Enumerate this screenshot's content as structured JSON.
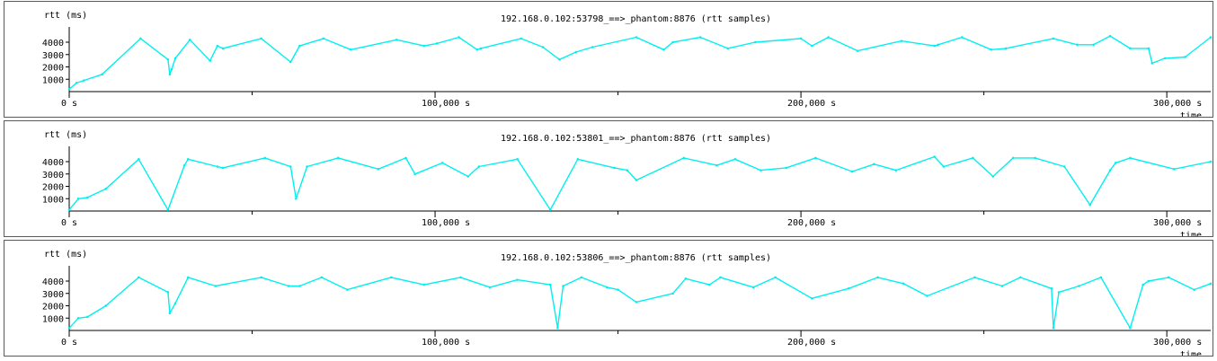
{
  "window": {
    "panels": [
      {
        "title": "192.168.0.102:53798_==>_phantom:8876 (rtt samples)"
      },
      {
        "title": "192.168.0.102:53801_==>_phantom:8876 (rtt samples)"
      },
      {
        "title": "192.168.0.102:53806_==>_phantom:8876 (rtt samples)"
      }
    ]
  },
  "chart_data": [
    {
      "type": "line",
      "title": "192.168.0.102:53798_==>_phantom:8876 (rtt samples)",
      "ylabel": "rtt (ms)",
      "xlabel": "time",
      "xlim": [
        0,
        312000
      ],
      "ylim": [
        0,
        4800
      ],
      "x_ticks": [
        0,
        100000,
        200000,
        300000
      ],
      "x_tick_labels": [
        "0 s",
        "100,000  s",
        "200,000  s",
        "300,000  s"
      ],
      "y_ticks": [
        1000,
        2000,
        3000,
        4000
      ],
      "y_tick_labels": [
        "1000",
        "2000",
        "3000",
        "4000"
      ],
      "grid": false,
      "series": [
        {
          "color": "#00f0f0",
          "x": [
            0,
            2000,
            4000,
            9000,
            19500,
            27000,
            27500,
            28000,
            29000,
            33000,
            38500,
            40500,
            42000,
            52500,
            60500,
            63000,
            69500,
            77000,
            89500,
            97000,
            100500,
            106500,
            111500,
            112500,
            123500,
            129500,
            134000,
            138500,
            143000,
            155000,
            162500,
            165000,
            172500,
            180000,
            187500,
            200000,
            203000,
            207500,
            215500,
            227500,
            236500,
            237500,
            244000,
            252000,
            256000,
            269000,
            275500,
            280000,
            284500,
            290000,
            295000,
            296000,
            299500,
            305000,
            312000
          ],
          "y": [
            200,
            700,
            900,
            1400,
            4300,
            2600,
            1400,
            1800,
            2700,
            4200,
            2500,
            3700,
            3500,
            4300,
            2400,
            3700,
            4300,
            3400,
            4200,
            3700,
            3900,
            4400,
            3400,
            3500,
            4300,
            3600,
            2600,
            3200,
            3600,
            4400,
            3400,
            4000,
            4400,
            3500,
            4000,
            4300,
            3700,
            4400,
            3300,
            4100,
            3700,
            3800,
            4400,
            3400,
            3500,
            4300,
            3800,
            3800,
            4500,
            3500,
            3500,
            2300,
            2700,
            2800,
            4400
          ]
        }
      ]
    },
    {
      "type": "line",
      "title": "192.168.0.102:53801_==>_phantom:8876 (rtt samples)",
      "ylabel": "rtt (ms)",
      "xlabel": "time",
      "xlim": [
        0,
        312000
      ],
      "ylim": [
        0,
        4800
      ],
      "x_ticks": [
        0,
        100000,
        200000,
        300000
      ],
      "x_tick_labels": [
        "0 s",
        "100,000  s",
        "200,000  s",
        "300,000  s"
      ],
      "y_ticks": [
        1000,
        2000,
        3000,
        4000
      ],
      "y_tick_labels": [
        "1000",
        "2000",
        "3000",
        "4000"
      ],
      "grid": false,
      "series": [
        {
          "color": "#00f0f0",
          "x": [
            0,
            2500,
            5000,
            10000,
            19000,
            27000,
            31500,
            32500,
            40500,
            42000,
            53500,
            60500,
            62000,
            65000,
            73500,
            84500,
            92000,
            94500,
            102000,
            109000,
            112000,
            122500,
            131500,
            139000,
            149000,
            152500,
            155000,
            168000,
            177000,
            182000,
            189000,
            196000,
            204000,
            214000,
            220000,
            226000,
            236500,
            239000,
            247000,
            252500,
            258000,
            264000,
            272000,
            279000,
            284500,
            286000,
            290000,
            302000,
            312000
          ],
          "y": [
            100,
            1000,
            1100,
            1800,
            4200,
            100,
            3700,
            4200,
            3600,
            3500,
            4300,
            3600,
            1000,
            3600,
            4300,
            3400,
            4300,
            3000,
            3900,
            2800,
            3600,
            4200,
            100,
            4200,
            3500,
            3300,
            2500,
            4300,
            3700,
            4200,
            3300,
            3500,
            4300,
            3200,
            3800,
            3300,
            4400,
            3600,
            4300,
            2800,
            4300,
            4300,
            3600,
            500,
            3300,
            3900,
            4300,
            3400,
            4000
          ]
        }
      ]
    },
    {
      "type": "line",
      "title": "192.168.0.102:53806_==>_phantom:8876 (rtt samples)",
      "ylabel": "rtt (ms)",
      "xlabel": "time",
      "xlim": [
        0,
        312000
      ],
      "ylim": [
        0,
        4800
      ],
      "x_ticks": [
        0,
        100000,
        200000,
        300000
      ],
      "x_tick_labels": [
        "0 s",
        "100,000  s",
        "200,000  s",
        "300,000  s"
      ],
      "y_ticks": [
        1000,
        2000,
        3000,
        4000
      ],
      "y_tick_labels": [
        "1000",
        "2000",
        "3000",
        "4000"
      ],
      "grid": false,
      "series": [
        {
          "color": "#00f0f0",
          "x": [
            0,
            2500,
            5000,
            10000,
            19000,
            27000,
            27500,
            29000,
            32500,
            40000,
            52500,
            60000,
            63000,
            69000,
            76000,
            88000,
            97000,
            107000,
            115000,
            122500,
            131500,
            133500,
            135000,
            140000,
            147000,
            150000,
            155000,
            165000,
            168500,
            175000,
            178000,
            187000,
            193000,
            203000,
            213000,
            221000,
            228000,
            234500,
            247500,
            255000,
            260000,
            268500,
            269000,
            270500,
            276000,
            282000,
            290000,
            293500,
            295000,
            300500,
            307500,
            312000
          ],
          "y": [
            200,
            1000,
            1100,
            2000,
            4300,
            3100,
            1400,
            2200,
            4300,
            3600,
            4300,
            3600,
            3600,
            4300,
            3300,
            4300,
            3700,
            4300,
            3500,
            4100,
            3700,
            200,
            3600,
            4300,
            3500,
            3300,
            2300,
            3000,
            4200,
            3700,
            4300,
            3500,
            4300,
            2600,
            3400,
            4300,
            3800,
            2800,
            4300,
            3600,
            4300,
            3400,
            200,
            3100,
            3600,
            4300,
            200,
            3700,
            4000,
            4300,
            3300,
            3800
          ]
        }
      ]
    }
  ]
}
